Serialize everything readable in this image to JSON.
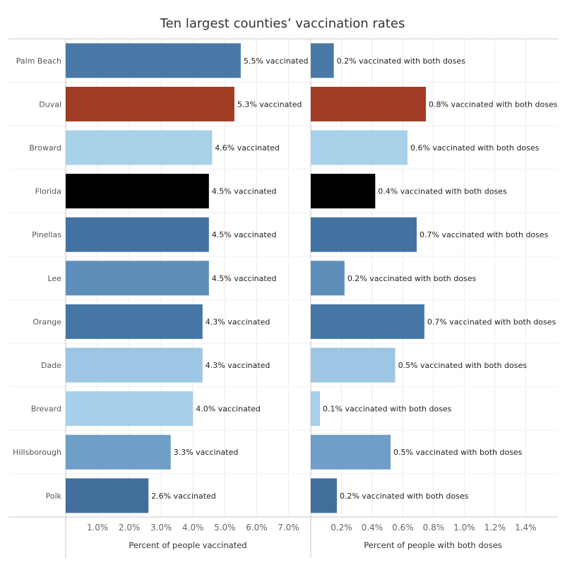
{
  "chart_data": {
    "type": "bar",
    "orientation": "horizontal",
    "title": "Ten largest counties’ vaccination rates",
    "categories": [
      "Palm Beach",
      "Duval",
      "Broward",
      "Florida",
      "Pinellas",
      "Lee",
      "Orange",
      "Dade",
      "Brevard",
      "Hillsborough",
      "Polk"
    ],
    "bar_colors": [
      "#4878a6",
      "#a03c23",
      "#a8d1ea",
      "#000000",
      "#4272a2",
      "#5e8fbb",
      "#4676a4",
      "#9cc6e4",
      "#a6d0ec",
      "#6f9ec8",
      "#426e9c"
    ],
    "grid": true,
    "panels": [
      {
        "series_name": "Percent of people vaccinated",
        "xlabel": "Percent of people vaccinated",
        "xlim": [
          0,
          0.075
        ],
        "ticks": [
          0.01,
          0.02,
          0.03,
          0.04,
          0.05,
          0.06,
          0.07
        ],
        "tick_labels": [
          "1.0%",
          "2.0%",
          "3.0%",
          "4.0%",
          "5.0%",
          "6.0%",
          "7.0%"
        ],
        "values": [
          0.055,
          0.053,
          0.046,
          0.045,
          0.045,
          0.045,
          0.043,
          0.043,
          0.04,
          0.033,
          0.026
        ],
        "data_labels": [
          "5.5% vaccinated",
          "5.3% vaccinated",
          "4.6% vaccinated",
          "4.5% vaccinated",
          "4.5% vaccinated",
          "4.5% vaccinated",
          "4.3% vaccinated",
          "4.3% vaccinated",
          "4.0% vaccinated",
          "3.3% vaccinated",
          "2.6% vaccinated"
        ]
      },
      {
        "series_name": "Percent of people with both doses",
        "xlabel": "Percent of people with both doses",
        "xlim": [
          0,
          0.0161
        ],
        "ticks": [
          0.002,
          0.004,
          0.006,
          0.008,
          0.01,
          0.012,
          0.014
        ],
        "tick_labels": [
          "0.2%",
          "0.4%",
          "0.6%",
          "0.8%",
          "1.0%",
          "1.2%",
          "1.4%"
        ],
        "values": [
          0.0015,
          0.0075,
          0.0063,
          0.0042,
          0.0069,
          0.0022,
          0.0074,
          0.0055,
          0.0006,
          0.0052,
          0.0017
        ],
        "data_labels": [
          "0.2% vaccinated with both doses",
          "0.8% vaccinated with both doses",
          "0.6% vaccinated with both doses",
          "0.4% vaccinated with both doses",
          "0.7% vaccinated with both doses",
          "0.2% vaccinated with both doses",
          "0.7% vaccinated with both doses",
          "0.5% vaccinated with both doses",
          "0.1% vaccinated with both doses",
          "0.5% vaccinated with both doses",
          "0.2% vaccinated with both doses"
        ]
      }
    ]
  }
}
